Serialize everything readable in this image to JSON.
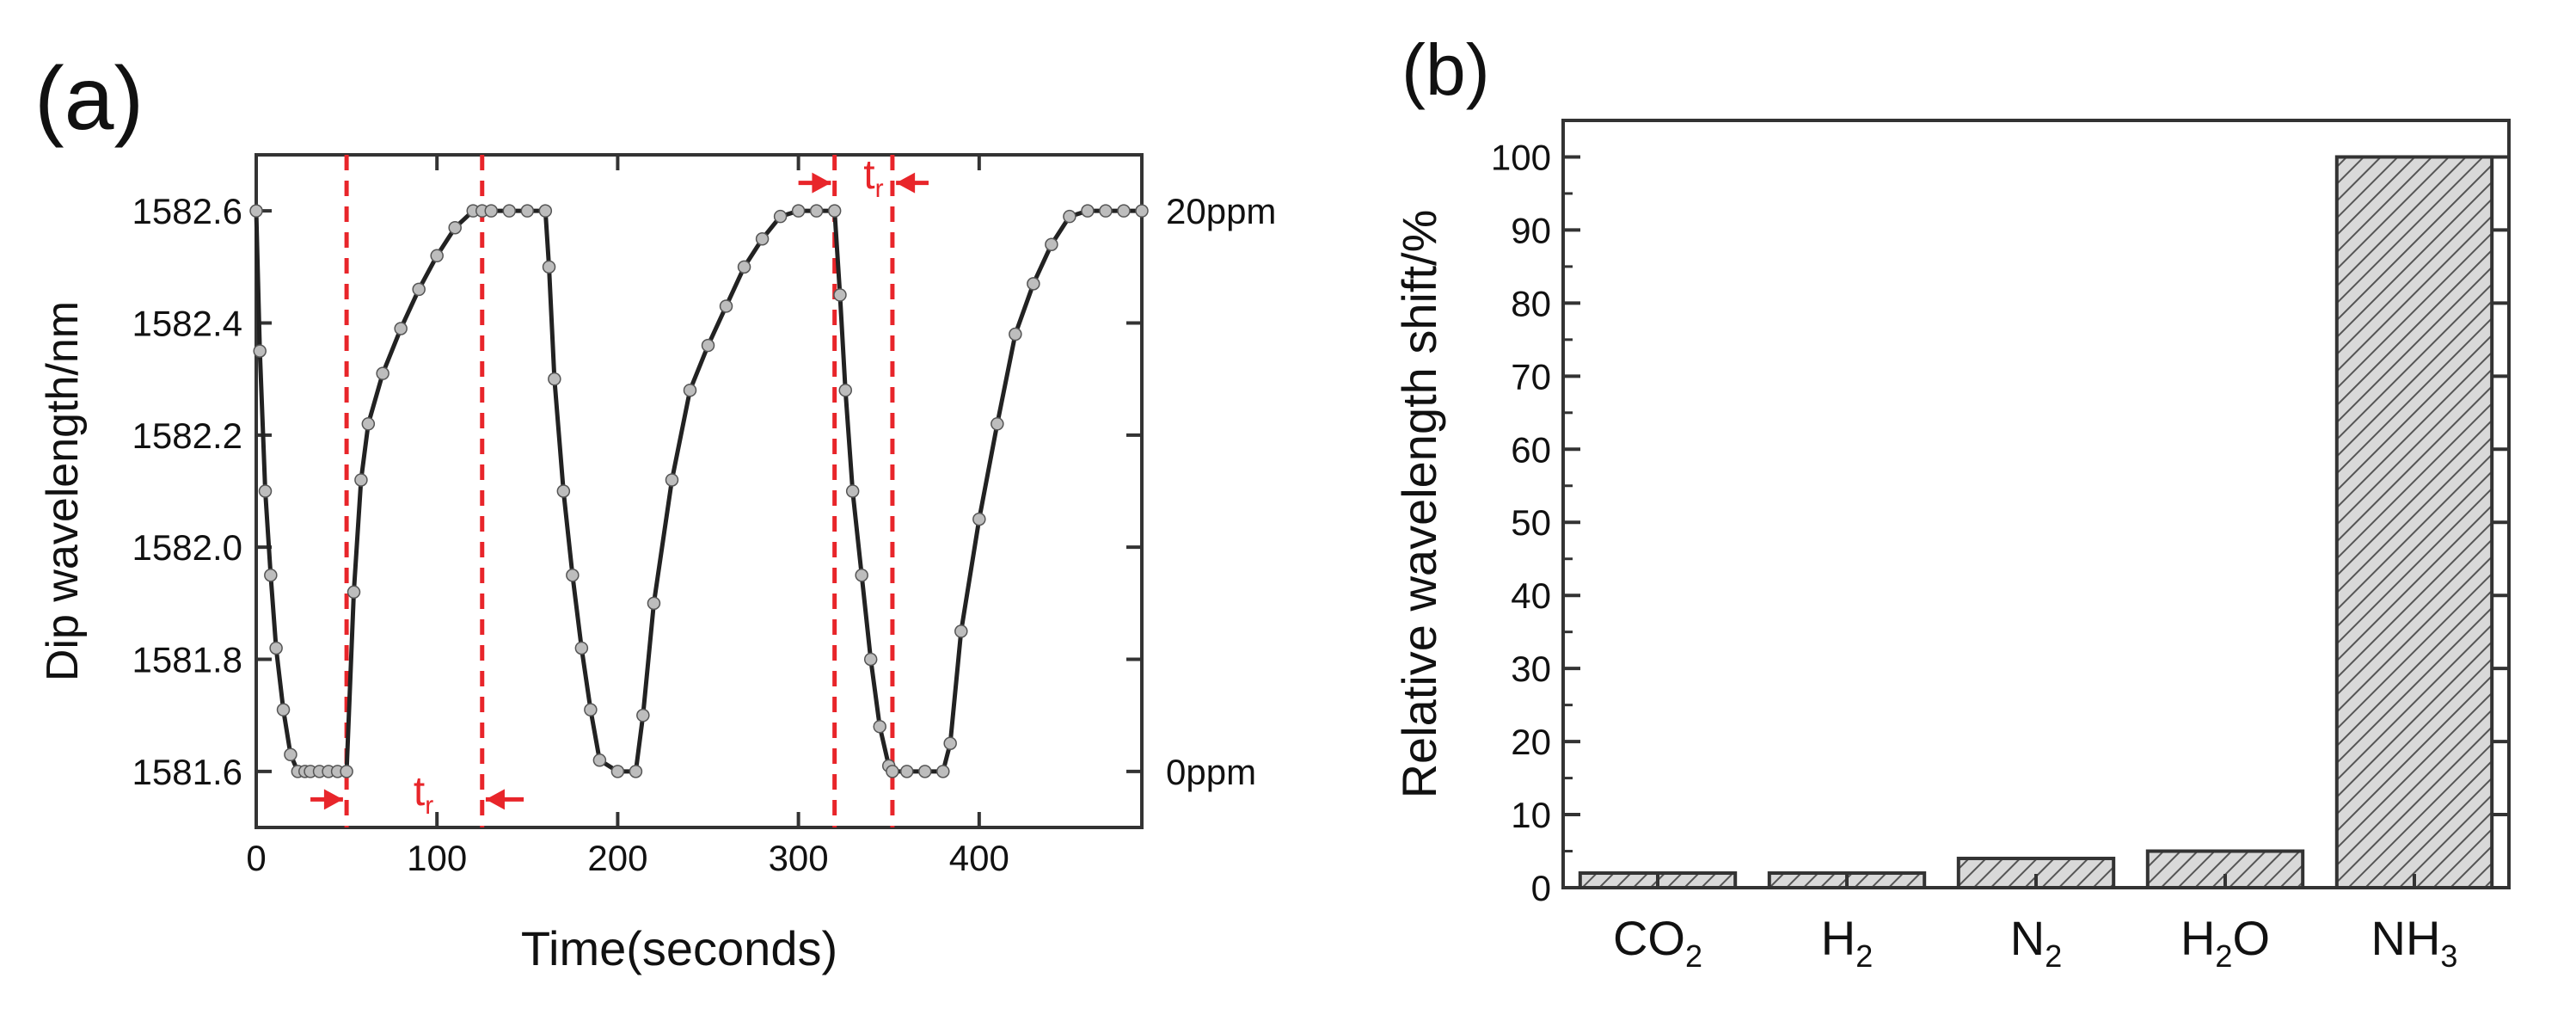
{
  "chart_data": [
    {
      "panel_label": "(a)",
      "type": "line",
      "xlabel": "Time(seconds)",
      "ylabel": "Dip wavelength/nm",
      "xlim": [
        0,
        490
      ],
      "ylim": [
        1581.5,
        1582.7
      ],
      "xticks": [
        0,
        100,
        200,
        300,
        400
      ],
      "xtick_labels": [
        "0",
        "100",
        "200",
        "300",
        "400"
      ],
      "yticks": [
        1581.6,
        1581.8,
        1582.0,
        1582.2,
        1582.4,
        1582.6
      ],
      "ytick_labels": [
        "1581.6",
        "1581.8",
        "1582.0",
        "1582.2",
        "1582.4",
        "1582.6"
      ],
      "right_labels": [
        {
          "text": "20ppm",
          "y": 1582.6
        },
        {
          "text": "0ppm",
          "y": 1581.6
        }
      ],
      "series": [
        {
          "x": [
            0,
            2,
            5,
            8,
            11,
            15,
            19,
            23,
            27,
            30,
            35,
            40,
            45,
            50,
            54,
            58,
            62,
            70,
            80,
            90,
            100,
            110,
            120,
            125,
            130,
            140,
            150,
            160,
            162,
            165,
            170,
            175,
            180,
            185,
            190,
            200,
            210,
            214,
            220,
            230,
            240,
            250,
            260,
            270,
            280,
            290,
            300,
            310,
            320,
            323,
            326,
            330,
            335,
            340,
            345,
            350,
            352,
            360,
            370,
            380,
            384,
            390,
            400,
            410,
            420,
            430,
            440,
            450,
            460,
            470,
            480,
            490
          ],
          "y": [
            1582.6,
            1582.35,
            1582.1,
            1581.95,
            1581.82,
            1581.71,
            1581.63,
            1581.6,
            1581.6,
            1581.6,
            1581.6,
            1581.6,
            1581.6,
            1581.6,
            1581.92,
            1582.12,
            1582.22,
            1582.31,
            1582.39,
            1582.46,
            1582.52,
            1582.57,
            1582.6,
            1582.6,
            1582.6,
            1582.6,
            1582.6,
            1582.6,
            1582.5,
            1582.3,
            1582.1,
            1581.95,
            1581.82,
            1581.71,
            1581.62,
            1581.6,
            1581.6,
            1581.7,
            1581.9,
            1582.12,
            1582.28,
            1582.36,
            1582.43,
            1582.5,
            1582.55,
            1582.59,
            1582.6,
            1582.6,
            1582.6,
            1582.45,
            1582.28,
            1582.1,
            1581.95,
            1581.8,
            1581.68,
            1581.61,
            1581.6,
            1581.6,
            1581.6,
            1581.6,
            1581.65,
            1581.85,
            1582.05,
            1582.22,
            1582.38,
            1582.47,
            1582.54,
            1582.59,
            1582.6,
            1582.6,
            1582.6,
            1582.6
          ]
        }
      ],
      "vlines": [
        50,
        125,
        320,
        352
      ],
      "annotations": [
        {
          "text": "t",
          "sub": "r",
          "x": 87,
          "y": 1581.54
        },
        {
          "text": "t",
          "sub": "r",
          "x": 336,
          "y": 1582.64
        }
      ],
      "arrows": [
        {
          "x_from": 30,
          "x_to": 48,
          "y": 1581.55
        },
        {
          "x_from": 148,
          "x_to": 127,
          "y": 1581.55
        },
        {
          "x_from": 300,
          "x_to": 318,
          "y": 1582.65
        },
        {
          "x_from": 372,
          "x_to": 354,
          "y": 1582.65
        }
      ],
      "grid": false
    },
    {
      "panel_label": "(b)",
      "type": "bar",
      "ylabel": "Relative wavelength shift/%",
      "ylim": [
        0,
        105
      ],
      "yticks": [
        0,
        10,
        20,
        30,
        40,
        50,
        60,
        70,
        80,
        90,
        100
      ],
      "ytick_labels": [
        "0",
        "10",
        "20",
        "30",
        "40",
        "50",
        "60",
        "70",
        "80",
        "90",
        "100"
      ],
      "categories": [
        {
          "base": "CO",
          "sub": "2",
          "tail": ""
        },
        {
          "base": "H",
          "sub": "2",
          "tail": ""
        },
        {
          "base": "N",
          "sub": "2",
          "tail": ""
        },
        {
          "base": "H",
          "sub": "2",
          "tail": "O"
        },
        {
          "base": "NH",
          "sub": "3",
          "tail": ""
        }
      ],
      "values": [
        2,
        2,
        4,
        5,
        100
      ],
      "bar_fill": "hatched",
      "grid": false
    }
  ],
  "colors": {
    "line": "#222222",
    "marker_fill": "#bdbdbd",
    "dashed": "#e8252a",
    "bar_hatch": "#555555",
    "bar_bg": "#d9d9d9",
    "axis": "#333333"
  }
}
